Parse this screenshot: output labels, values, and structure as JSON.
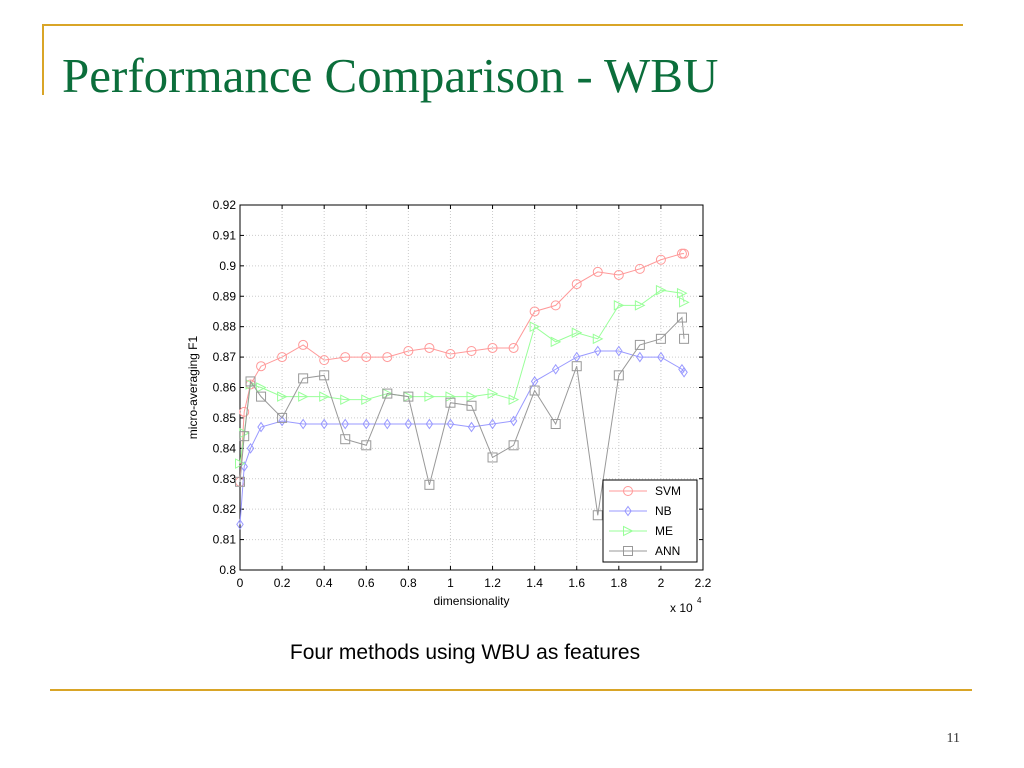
{
  "title": "Performance Comparison - WBU",
  "caption": "Four methods using WBU as features",
  "page_number": "11",
  "chart_data": {
    "type": "line",
    "xlabel": "dimensionality",
    "ylabel": "micro-averaging F1",
    "x_multiplier": {
      "base": "x 10",
      "exponent": "4"
    },
    "x": [
      0,
      0.02,
      0.05,
      0.1,
      0.2,
      0.3,
      0.4,
      0.5,
      0.6,
      0.7,
      0.8,
      0.9,
      1.0,
      1.1,
      1.2,
      1.3,
      1.4,
      1.5,
      1.6,
      1.7,
      1.8,
      1.9,
      2.0,
      2.1,
      2.11
    ],
    "series": [
      {
        "name": "SVM",
        "color": "#ff9999",
        "marker": "circle",
        "values": [
          0.829,
          0.852,
          0.861,
          0.867,
          0.87,
          0.874,
          0.869,
          0.87,
          0.87,
          0.87,
          0.872,
          0.873,
          0.871,
          0.872,
          0.873,
          0.873,
          0.885,
          0.887,
          0.894,
          0.898,
          0.897,
          0.899,
          0.902,
          0.904,
          0.904
        ]
      },
      {
        "name": "NB",
        "color": "#9999ff",
        "marker": "diamond",
        "values": [
          0.815,
          0.834,
          0.84,
          0.847,
          0.849,
          0.848,
          0.848,
          0.848,
          0.848,
          0.848,
          0.848,
          0.848,
          0.848,
          0.847,
          0.848,
          0.849,
          0.862,
          0.866,
          0.87,
          0.872,
          0.872,
          0.87,
          0.87,
          0.866,
          0.865
        ]
      },
      {
        "name": "ME",
        "color": "#99ff99",
        "marker": "triangle-right",
        "values": [
          0.835,
          0.845,
          0.861,
          0.86,
          0.857,
          0.857,
          0.857,
          0.856,
          0.856,
          0.858,
          0.857,
          0.857,
          0.857,
          0.857,
          0.858,
          0.856,
          0.88,
          0.875,
          0.878,
          0.876,
          0.887,
          0.887,
          0.892,
          0.891,
          0.888
        ]
      },
      {
        "name": "ANN",
        "color": "#999999",
        "marker": "square",
        "values": [
          0.829,
          0.844,
          0.862,
          0.857,
          0.85,
          0.863,
          0.864,
          0.843,
          0.841,
          0.858,
          0.857,
          0.828,
          0.855,
          0.854,
          0.837,
          0.841,
          0.859,
          0.848,
          0.867,
          0.818,
          0.864,
          0.874,
          0.876,
          0.883,
          0.876
        ]
      }
    ],
    "xlim": [
      0,
      2.2
    ],
    "xticks": [
      0,
      0.2,
      0.4,
      0.6,
      0.8,
      1,
      1.2,
      1.4,
      1.6,
      1.8,
      2,
      2.2
    ],
    "ylim": [
      0.8,
      0.92
    ],
    "yticks": [
      0.8,
      0.81,
      0.82,
      0.83,
      0.84,
      0.85,
      0.86,
      0.87,
      0.88,
      0.89,
      0.9,
      0.91,
      0.92
    ],
    "grid": true,
    "legend": "lower right"
  }
}
